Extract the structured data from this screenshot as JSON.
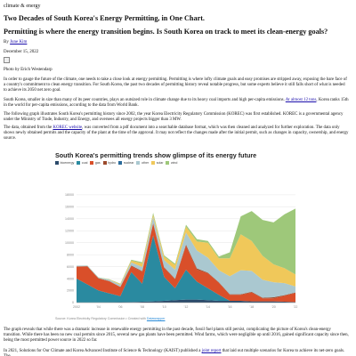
{
  "header": {
    "kicker": "climate & energy",
    "headline": "Two Decades of South Korea's Energy Permitting, in One Chart.",
    "subhead": "Permitting is where the energy transition begins. Is South Korea on track to meet its clean-energy goals?",
    "byline_prefix": "By ",
    "author": "June Kim",
    "date": "December 15, 2022",
    "photo_credit": "Photo by Erich Westendarp"
  },
  "body": {
    "p1": "In order to gauge the future of the climate, one needs to take a close look at energy permitting. Permitting is where lofty climate goals and easy promises are stripped away, exposing the bare face of a country's commitment to clean energy transition. For South Korea, the past two decades of permitting history reveal notable progress, but some experts believe it still falls short of what is needed to achieve its 2050 net zero goal.",
    "p2_before": "South Korea, smaller in size than many of its peer countries, plays an outsized role in climate change due to its heavy coal imports and high per-capita emissions. ",
    "p2_link": "At almost 12 tons",
    "p2_after": ", Korea ranks 15th in the world for per-capita emissions, according to the data from World Bank.",
    "p3": "The following graph illustrates South Korea's permitting history since 2002, the year Korea Electricity Regulatory Commission (KOREC) was first established. KOREC is a governmental agency under the Ministry of Trade, Industry, and Energy, and oversees all energy projects bigger than 3 MW.",
    "p4_before": "The data, obtained from the ",
    "p4_link": "KOREC website",
    "p4_after": ", was converted from a pdf document into a searchable database format, which was then cleaned and analyzed for further exploration. The data only shows newly obtained permits and the capacity of the plant at the time of the approval. It may not reflect the changes made after the initial permit, such as changes in capacity, ownership, and energy source.",
    "p5": "The graph reveals that while there was a dramatic increase in renewable energy permitting in the past decade, fossil fuel plants still persist, complicating the picture of Korea's clean-energy transition. While there has been no new coal permits since 2015, several new gas plants have been permitted. Wind farms, which were negligible up until 2016, gained significant capacity since then, being the most permitted power source in 2022 so far.",
    "p6_before": "In 2021, Solutions for Our Climate and Korea Advanced Institute of Science & Technology (KAIST) published a ",
    "p6_link": "joint report",
    "p6_after": " that laid out multiple scenarios for Korea to achieve its net-zero goals. The"
  },
  "chart": {
    "title": "South Korea's permitting trends show glimpse of its energy future",
    "source_prefix": "Source: Korea Electricity Regulatory Commission • Created with ",
    "source_link": "Datawrapper"
  },
  "chart_data": {
    "type": "area",
    "title": "South Korea's permitting trends show glimpse of its energy future",
    "stacked": true,
    "ylim": [
      0,
      22000
    ],
    "yticks": [
      0,
      2000,
      4000,
      6000,
      8000,
      10000,
      12000,
      14000,
      16000,
      18000
    ],
    "x": [
      2002,
      2003,
      2004,
      2005,
      2006,
      2007,
      2008,
      2009,
      2010,
      2011,
      2012,
      2013,
      2014,
      2015,
      2016,
      2017,
      2018,
      2019,
      2020,
      2021,
      2022
    ],
    "xtick_labels": [
      "2002",
      "'04",
      "'06",
      "'08",
      "'10",
      "'12",
      "'14",
      "'16",
      "'18",
      "'20",
      "'22"
    ],
    "legend_position": "top-left",
    "series": [
      {
        "name": "bioenergy",
        "color": "#2b4a6b",
        "values": [
          10,
          20,
          30,
          50,
          80,
          100,
          150,
          200,
          300,
          400,
          500,
          500,
          400,
          300,
          300,
          300,
          200,
          200,
          200,
          150,
          100
        ]
      },
      {
        "name": "coal",
        "color": "#2a8aa0",
        "values": [
          4000,
          3000,
          2000,
          1500,
          1000,
          5000,
          3000,
          11000,
          4000,
          2000,
          5000,
          3000,
          2000,
          1000,
          0,
          0,
          0,
          0,
          0,
          0,
          0
        ]
      },
      {
        "name": "gas",
        "color": "#d94f2a",
        "values": [
          2000,
          3000,
          2000,
          2000,
          1500,
          1000,
          2000,
          2000,
          1500,
          1500,
          4000,
          2000,
          2500,
          2000,
          1000,
          1000,
          1500,
          500,
          500,
          1000,
          1500
        ]
      },
      {
        "name": "hydro",
        "color": "#9b4a2c",
        "values": [
          50,
          50,
          50,
          50,
          50,
          100,
          100,
          100,
          100,
          100,
          200,
          200,
          100,
          100,
          100,
          100,
          100,
          100,
          200,
          100,
          100
        ]
      },
      {
        "name": "nuclear",
        "color": "#2a6a9a",
        "values": [
          0,
          0,
          0,
          0,
          0,
          0,
          0,
          0,
          0,
          0,
          0,
          0,
          0,
          0,
          0,
          0,
          0,
          0,
          0,
          0,
          0
        ]
      },
      {
        "name": "other",
        "color": "#aac8d0",
        "values": [
          100,
          100,
          100,
          200,
          300,
          500,
          700,
          1000,
          1200,
          1500,
          2000,
          3000,
          2500,
          2000,
          3000,
          4000,
          3500,
          3000,
          2500,
          2000,
          1000
        ]
      },
      {
        "name": "solar",
        "color": "#f0c85a",
        "values": [
          0,
          0,
          0,
          50,
          150,
          300,
          600,
          400,
          600,
          800,
          1000,
          1500,
          2500,
          2000,
          3000,
          6000,
          5000,
          4000,
          3000,
          2500,
          2000
        ]
      },
      {
        "name": "wind",
        "color": "#9ec87a",
        "values": [
          10,
          20,
          30,
          50,
          80,
          150,
          200,
          300,
          200,
          200,
          300,
          400,
          300,
          300,
          1000,
          3000,
          5000,
          6000,
          7000,
          9000,
          11000
        ]
      }
    ]
  }
}
